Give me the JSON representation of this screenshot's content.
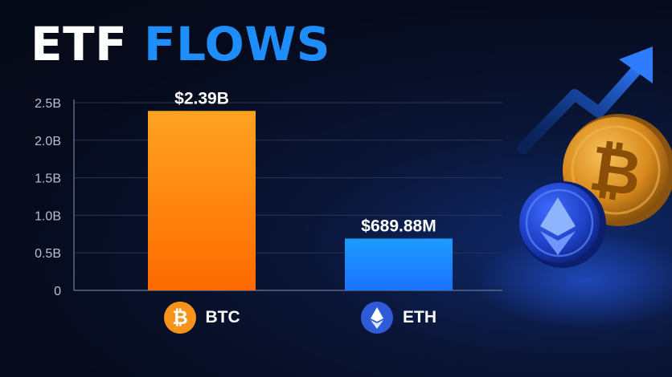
{
  "title": {
    "word1": "ETF",
    "word2": "FLOWS"
  },
  "colors": {
    "title_white": "#ffffff",
    "title_accent": "#1e8eff",
    "btc_top": "#ffa321",
    "btc_bottom": "#ff6a00",
    "eth_top": "#1c9bff",
    "eth_bottom": "#1a73ff",
    "grid": "#2a3552",
    "axis_text": "#b7c0d6"
  },
  "icons": {
    "btc": "bitcoin-coin-icon",
    "eth": "ethereum-coin-icon",
    "decoration": [
      "trend-arrow-icon",
      "bitcoin-coin-icon",
      "ethereum-coin-icon"
    ]
  },
  "chart_data": {
    "type": "bar",
    "categories": [
      "BTC",
      "ETH"
    ],
    "values": [
      2390000000,
      689880000
    ],
    "data_labels": [
      "$2.39B",
      "$689.88M"
    ],
    "ylim": [
      0,
      2500000000
    ],
    "yticks": [
      0,
      500000000,
      1000000000,
      1500000000,
      2000000000,
      2500000000
    ],
    "ytick_labels": [
      "0",
      "0.5B",
      "1.0B",
      "1.5B",
      "2.0B",
      "2.5B"
    ],
    "grid": true,
    "legend": "none"
  }
}
